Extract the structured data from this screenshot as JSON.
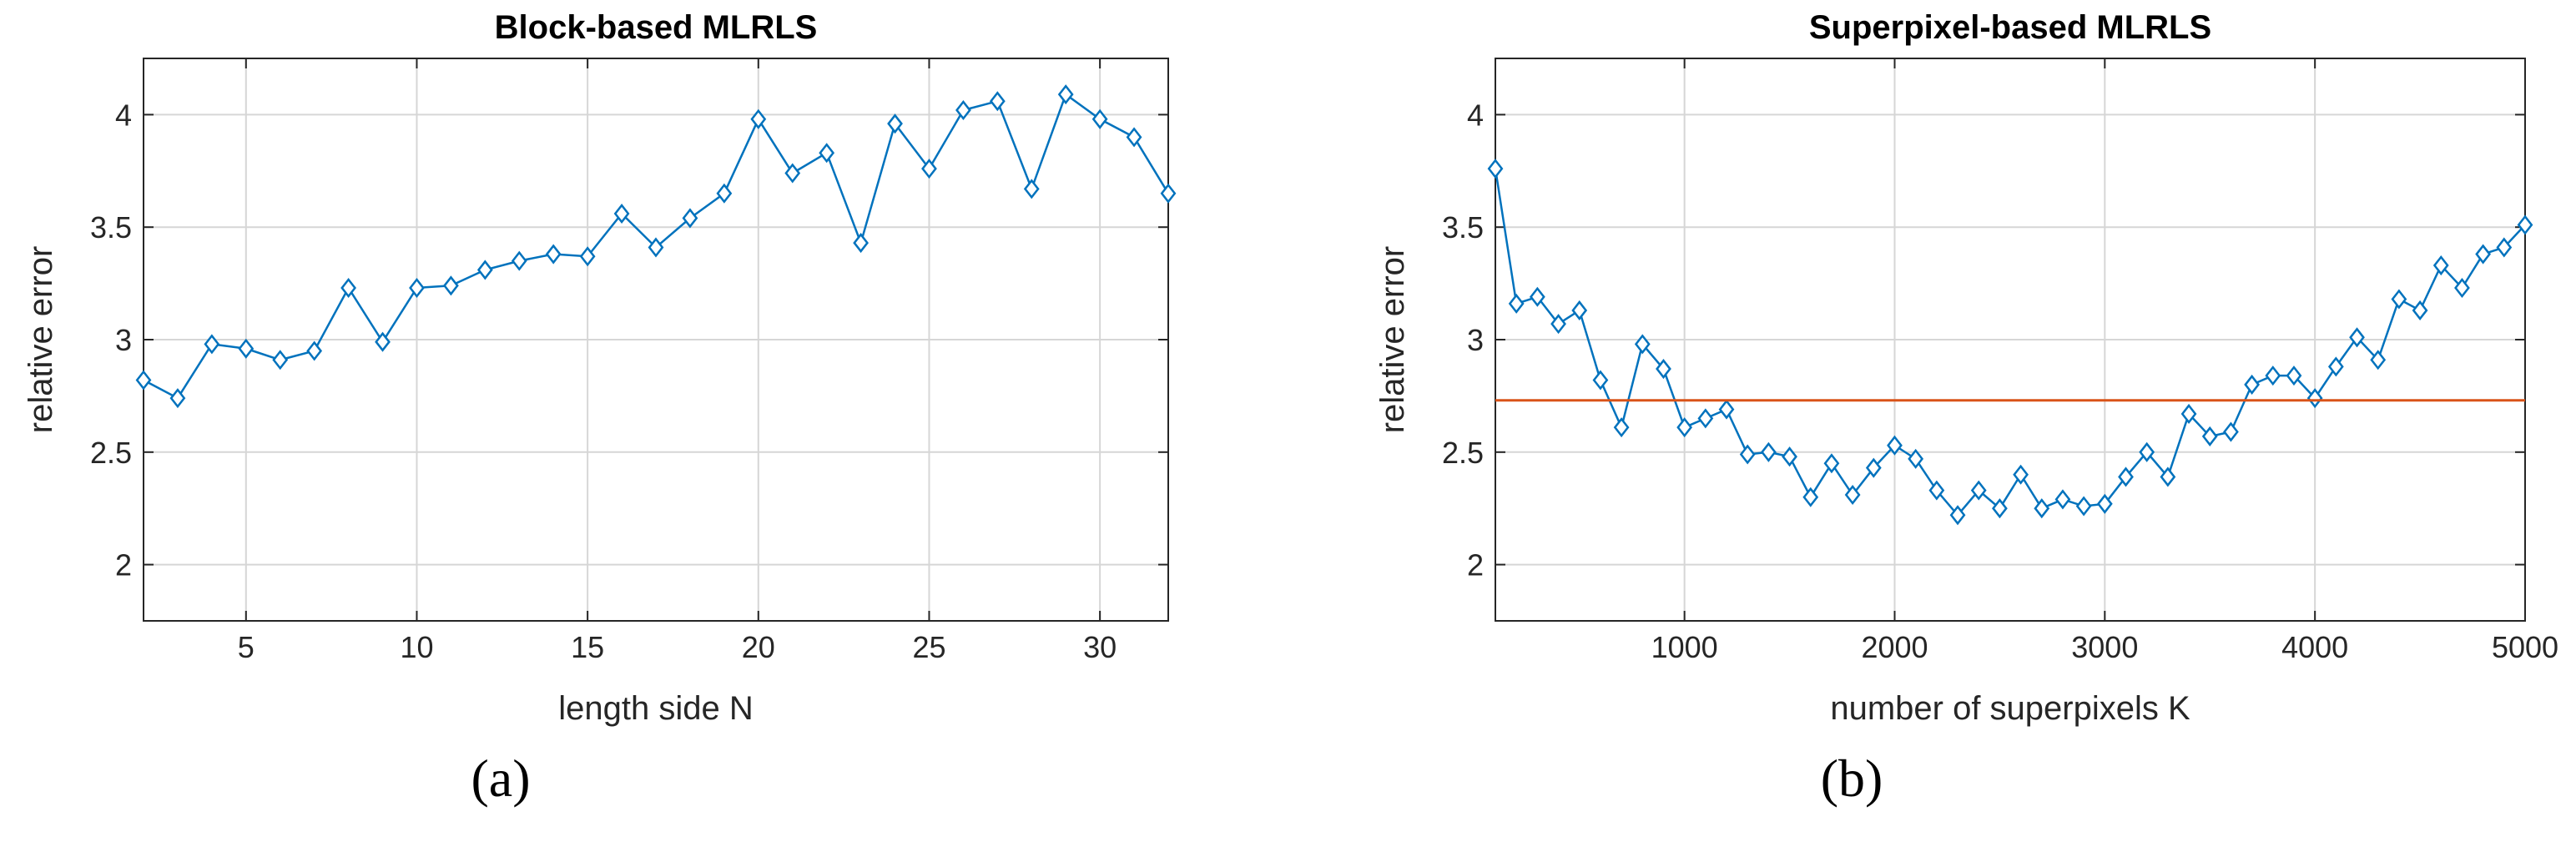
{
  "panel_labels": [
    "(a)",
    "(b)"
  ],
  "chart_data": [
    {
      "type": "line",
      "title": "Block-based MLRLS",
      "xlabel": "length side N",
      "ylabel": "relative error",
      "xlim": [
        2,
        32
      ],
      "ylim": [
        1.75,
        4.25
      ],
      "xticks": [
        5,
        10,
        15,
        20,
        25,
        30
      ],
      "yticks": [
        2,
        2.5,
        3,
        3.5,
        4
      ],
      "grid": true,
      "series": [
        {
          "color": "#0072BD",
          "marker": "diamond",
          "x": [
            2,
            3,
            4,
            5,
            6,
            7,
            8,
            9,
            10,
            11,
            12,
            13,
            14,
            15,
            16,
            17,
            18,
            19,
            20,
            21,
            22,
            23,
            24,
            25,
            26,
            27,
            28,
            29,
            30,
            31,
            32
          ],
          "y": [
            2.82,
            2.74,
            2.98,
            2.96,
            2.91,
            2.95,
            3.23,
            2.99,
            3.23,
            3.24,
            3.31,
            3.35,
            3.38,
            3.37,
            3.56,
            3.41,
            3.54,
            3.65,
            3.98,
            3.74,
            3.83,
            3.43,
            3.96,
            3.76,
            4.02,
            4.06,
            3.67,
            4.09,
            3.98,
            3.9,
            3.65
          ]
        }
      ]
    },
    {
      "type": "line",
      "title": "Superpixel-based MLRLS",
      "xlabel": "number of superpixels K",
      "ylabel": "relative error",
      "xlim": [
        100,
        5000
      ],
      "ylim": [
        1.75,
        4.25
      ],
      "xticks": [
        1000,
        2000,
        3000,
        4000,
        5000
      ],
      "yticks": [
        2,
        2.5,
        3,
        3.5,
        4
      ],
      "grid": true,
      "series": [
        {
          "color": "#0072BD",
          "marker": "diamond",
          "x": [
            100,
            200,
            300,
            400,
            500,
            600,
            700,
            800,
            900,
            1000,
            1100,
            1200,
            1300,
            1400,
            1500,
            1600,
            1700,
            1800,
            1900,
            2000,
            2100,
            2200,
            2300,
            2400,
            2500,
            2600,
            2700,
            2800,
            2900,
            3000,
            3100,
            3200,
            3300,
            3400,
            3500,
            3600,
            3700,
            3800,
            3900,
            4000,
            4100,
            4200,
            4300,
            4400,
            4500,
            4600,
            4700,
            4800,
            4900,
            5000
          ],
          "y": [
            3.76,
            3.16,
            3.19,
            3.07,
            3.13,
            2.82,
            2.61,
            2.98,
            2.87,
            2.61,
            2.65,
            2.69,
            2.49,
            2.5,
            2.48,
            2.3,
            2.45,
            2.31,
            2.43,
            2.53,
            2.47,
            2.33,
            2.22,
            2.33,
            2.25,
            2.4,
            2.25,
            2.29,
            2.26,
            2.27,
            2.39,
            2.5,
            2.39,
            2.67,
            2.57,
            2.59,
            2.8,
            2.84,
            2.84,
            2.74,
            2.88,
            3.01,
            2.91,
            3.18,
            3.13,
            3.33,
            3.23,
            3.38,
            3.41,
            3.51
          ]
        },
        {
          "color": "#D95319",
          "marker": "none",
          "x": [
            100,
            5000
          ],
          "y": [
            2.73,
            2.73
          ]
        }
      ]
    }
  ]
}
